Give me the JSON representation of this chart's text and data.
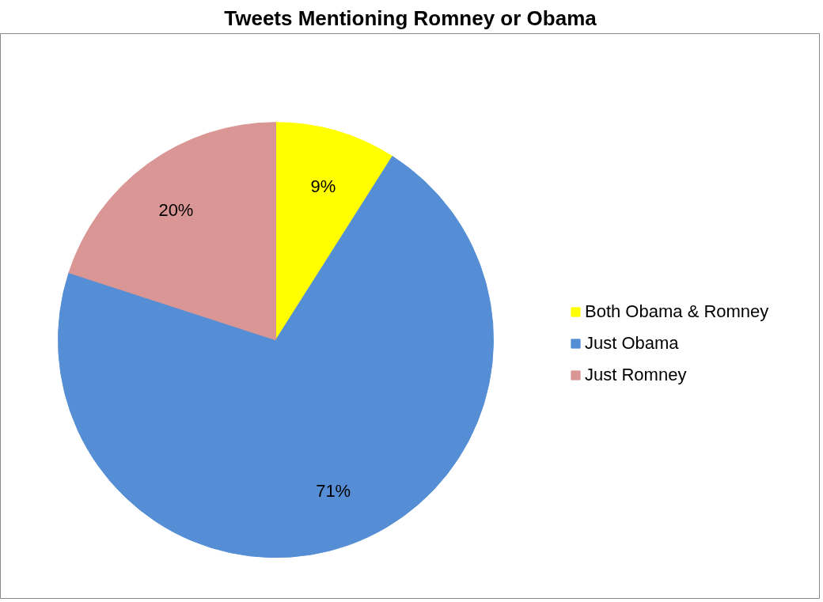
{
  "chart_data": {
    "type": "pie",
    "title": "Tweets Mentioning Romney or Obama",
    "categories": [
      "Both Obama & Romney",
      "Just Obama",
      "Just Romney"
    ],
    "values": [
      9,
      71,
      20
    ],
    "colors": [
      "#ffff00",
      "#558ed5",
      "#d99694"
    ],
    "value_labels": [
      "9%",
      "71%",
      "20%"
    ],
    "legend": "right"
  }
}
